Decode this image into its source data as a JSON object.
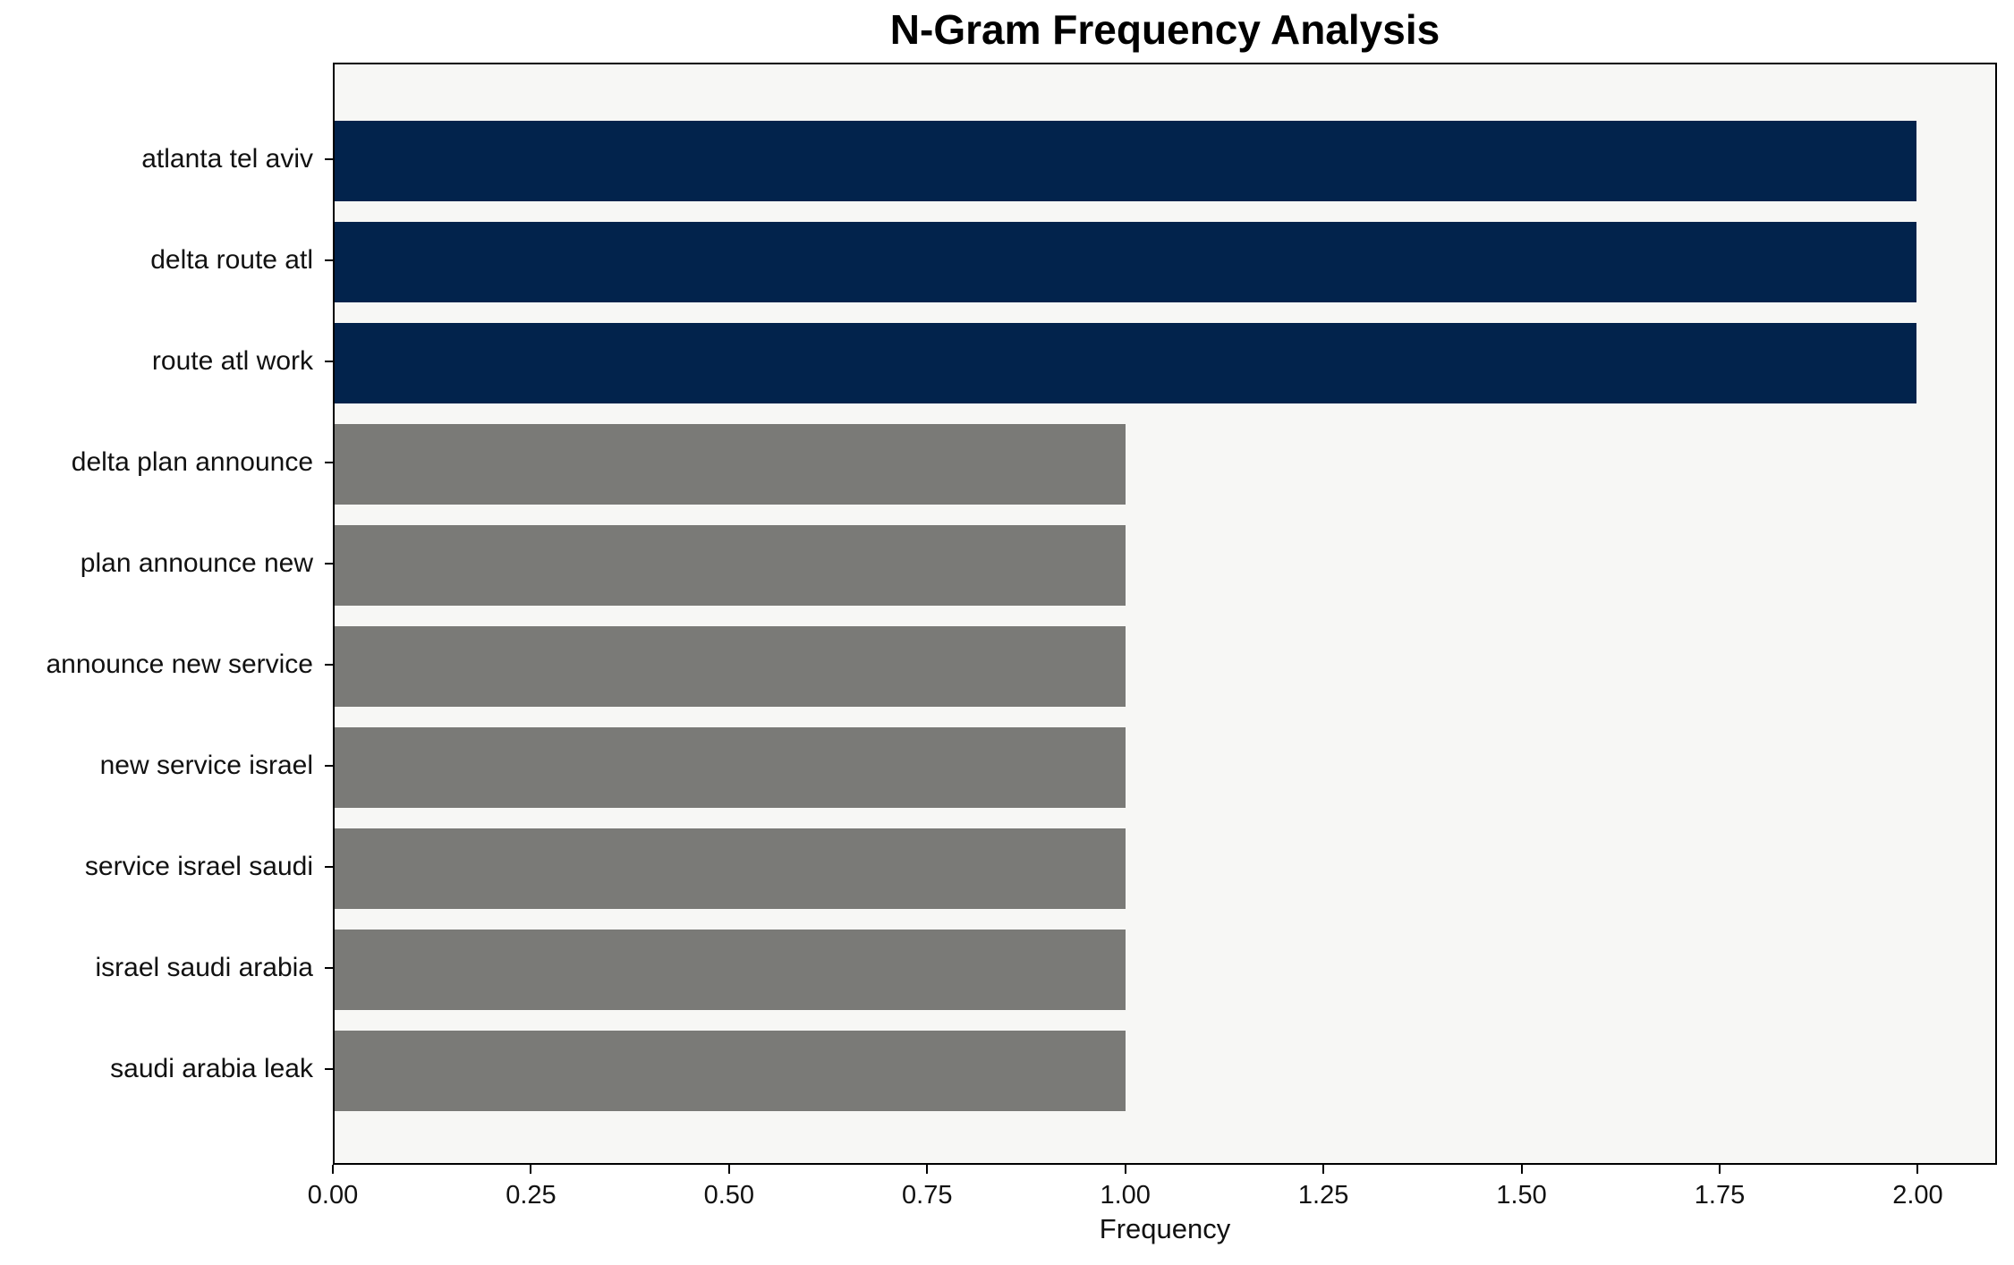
{
  "chart_data": {
    "type": "bar",
    "orientation": "horizontal",
    "title": "N-Gram Frequency Analysis",
    "xlabel": "Frequency",
    "ylabel": "",
    "categories": [
      "atlanta tel aviv",
      "delta route atl",
      "route atl work",
      "delta plan announce",
      "plan announce new",
      "announce new service",
      "new service israel",
      "service israel saudi",
      "israel saudi arabia",
      "saudi arabia leak"
    ],
    "values": [
      2,
      2,
      2,
      1,
      1,
      1,
      1,
      1,
      1,
      1
    ],
    "bar_colors": [
      "#02234c",
      "#02234c",
      "#02234c",
      "#7a7a77",
      "#7a7a77",
      "#7a7a77",
      "#7a7a77",
      "#7a7a77",
      "#7a7a77",
      "#7a7a77"
    ],
    "xlim": [
      0,
      2.1
    ],
    "xticks": [
      "0.00",
      "0.25",
      "0.50",
      "0.75",
      "1.00",
      "1.25",
      "1.50",
      "1.75",
      "2.00"
    ],
    "xtick_values": [
      0,
      0.25,
      0.5,
      0.75,
      1.0,
      1.25,
      1.5,
      1.75,
      2.0
    ],
    "grid": "off",
    "legend": "none",
    "plot_background": "#f7f7f5",
    "figure_background": "#ffffff",
    "highlight_color": "#02234c",
    "default_color": "#7a7a77"
  }
}
